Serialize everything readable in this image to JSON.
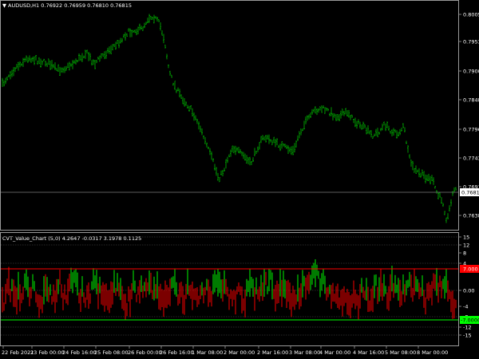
{
  "main_chart": {
    "header": "AUDUSD,H1  0.76922 0.76959 0.76810 0.76815",
    "price_labels": [
      "0.80055",
      "0.79530",
      "0.79005",
      "0.78485",
      "0.77960",
      "0.77435",
      "0.76910",
      "0.76385"
    ],
    "current_price": "0.76815",
    "colors": {
      "background": "#000000",
      "candles": "#00c000",
      "axis_text": "#ffffff",
      "current_tag_bg": "#ffffff",
      "current_tag_text": "#000000",
      "grid_line": "#7a7a7a"
    }
  },
  "indicator": {
    "header": "CVT_Value_Chart (5,0) 4.2647 -0.0317 3.1978 0.1125",
    "levels": [
      "15",
      "12",
      "8",
      "4",
      "0.00",
      "-4",
      "-8",
      "-12",
      "-15"
    ],
    "overbought_tag": "7.000",
    "oversold_tag": "-7.0000",
    "colors": {
      "up": "#00e000",
      "down": "#e00000",
      "overbought": "#ff0000",
      "oversold": "#00ff00",
      "level_line": "#606060"
    }
  },
  "time_axis": {
    "labels": [
      "22 Feb 2021",
      "23 Feb 00:00",
      "24 Feb 16:00",
      "25 Feb 08:00",
      "26 Feb 00:00",
      "26 Feb 16:00",
      "1 Mar 08:00",
      "2 Mar 00:00",
      "2 Mar 16:00",
      "3 Mar 08:00",
      "4 Mar 00:00",
      "4 Mar 16:00",
      "5 Mar 08:00",
      "8 Mar 00:00"
    ]
  }
}
